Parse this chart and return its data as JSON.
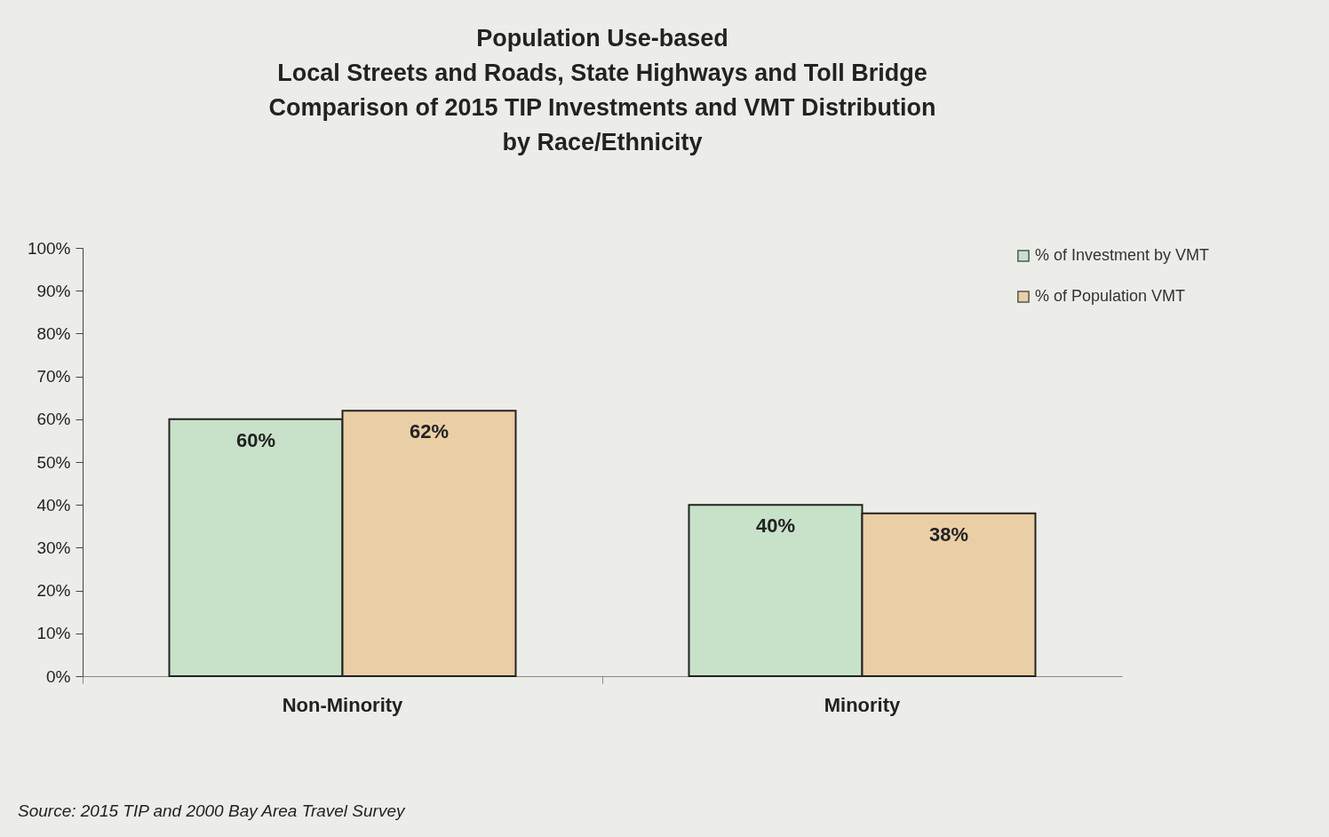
{
  "chart_data": {
    "type": "bar",
    "title": [
      "Population Use-based",
      "Local Streets and Roads, State Highways and Toll Bridge",
      "Comparison of 2015 TIP Investments and VMT Distribution",
      "by Race/Ethnicity"
    ],
    "categories": [
      "Non-Minority",
      "Minority"
    ],
    "series": [
      {
        "name": "% of Investment by VMT",
        "color": "#c8e2c9",
        "values": [
          60,
          40
        ],
        "value_labels": [
          "60%",
          "40%"
        ]
      },
      {
        "name": "% of Population VMT",
        "color": "#eacfa6",
        "values": [
          62,
          38
        ],
        "value_labels": [
          "62%",
          "38%"
        ]
      }
    ],
    "ylim": [
      0,
      100
    ],
    "yticks": [
      {
        "value": 0,
        "label": "0%"
      },
      {
        "value": 10,
        "label": "10%"
      },
      {
        "value": 20,
        "label": "20%"
      },
      {
        "value": 30,
        "label": "30%"
      },
      {
        "value": 40,
        "label": "40%"
      },
      {
        "value": 50,
        "label": "50%"
      },
      {
        "value": 60,
        "label": "60%"
      },
      {
        "value": 70,
        "label": "70%"
      },
      {
        "value": 80,
        "label": "80%"
      },
      {
        "value": 90,
        "label": "90%"
      },
      {
        "value": 100,
        "label": "100%"
      }
    ],
    "grid": false,
    "legend": "right",
    "annotations": [
      "Source: 2015 TIP and 2000 Bay Area Travel Survey"
    ]
  }
}
